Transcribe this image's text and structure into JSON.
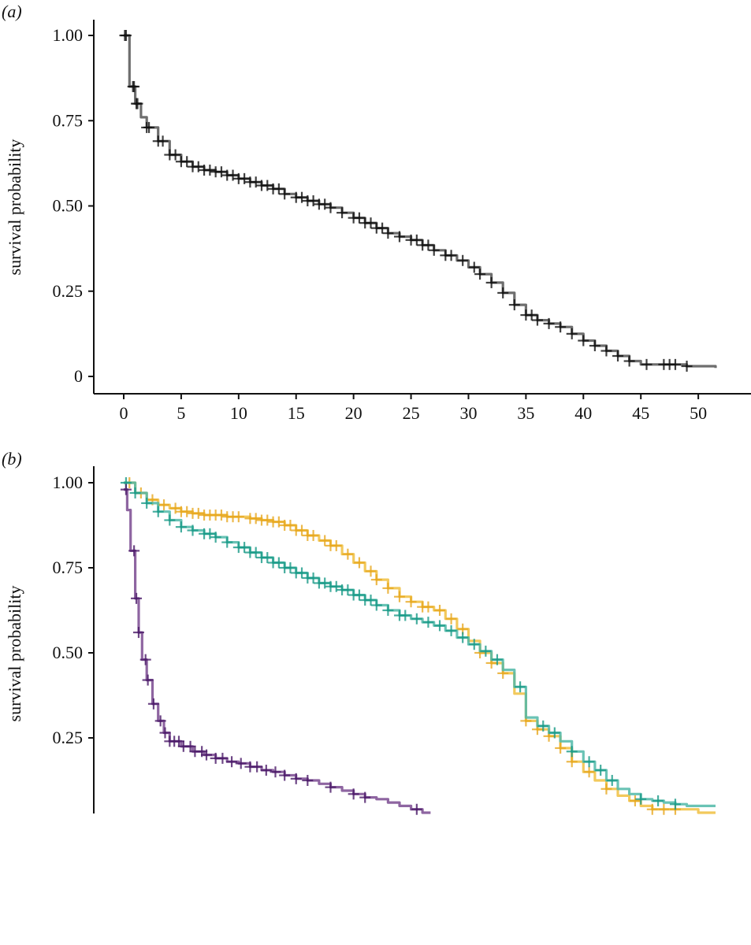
{
  "chart_data": [
    {
      "panel_label": "(a)",
      "type": "line",
      "step": true,
      "ylabel": "survival probability",
      "xlabel": "",
      "xlim": [
        0,
        51.5
      ],
      "ylim": [
        0,
        1.0
      ],
      "x_ticks": [
        0,
        5,
        10,
        15,
        20,
        25,
        30,
        35,
        40,
        45,
        50
      ],
      "x_tick_labels": [
        "0",
        "5",
        "10",
        "15",
        "20",
        "25",
        "30",
        "35",
        "40",
        "45",
        "50"
      ],
      "y_ticks": [
        0,
        0.25,
        0.5,
        0.75,
        1.0
      ],
      "y_tick_labels": [
        "0",
        "0.25",
        "0.50",
        "0.75",
        "1.00"
      ],
      "series": [
        {
          "color": "#555555",
          "censor_color": "#111111",
          "x": [
            0,
            0.5,
            1,
            1.5,
            2,
            3,
            4,
            5,
            6,
            7,
            8,
            9,
            10,
            11,
            12,
            13,
            14,
            15,
            16,
            17,
            18,
            19,
            20,
            21,
            22,
            23,
            24,
            25,
            26,
            27,
            28,
            29,
            30,
            31,
            32,
            33,
            34,
            35,
            36,
            37,
            38,
            39,
            40,
            41,
            42,
            43,
            44,
            45,
            46,
            47,
            48,
            49,
            50,
            51.5
          ],
          "y": [
            1.0,
            0.85,
            0.8,
            0.76,
            0.73,
            0.69,
            0.65,
            0.63,
            0.615,
            0.605,
            0.6,
            0.59,
            0.58,
            0.57,
            0.56,
            0.55,
            0.535,
            0.525,
            0.515,
            0.505,
            0.495,
            0.48,
            0.465,
            0.45,
            0.435,
            0.42,
            0.41,
            0.4,
            0.385,
            0.37,
            0.355,
            0.34,
            0.32,
            0.3,
            0.275,
            0.245,
            0.21,
            0.18,
            0.165,
            0.155,
            0.145,
            0.125,
            0.105,
            0.09,
            0.075,
            0.06,
            0.045,
            0.035,
            0.035,
            0.035,
            0.035,
            0.03,
            0.03,
            0.025
          ],
          "censored_x": [
            0.1,
            0.2,
            0.8,
            0.9,
            1.1,
            1.2,
            2.0,
            2.2,
            3.0,
            3.4,
            4.0,
            4.5,
            5.0,
            5.5,
            6.0,
            6.5,
            7.0,
            7.5,
            8.0,
            8.5,
            9.0,
            9.5,
            10.0,
            10.5,
            11.0,
            11.5,
            12.0,
            12.5,
            13.0,
            13.5,
            14.0,
            15.0,
            15.5,
            16.0,
            16.5,
            17.0,
            17.5,
            18.0,
            19.0,
            20.0,
            20.5,
            21.0,
            21.5,
            22.0,
            22.5,
            23.0,
            24.0,
            25.0,
            25.5,
            26.0,
            26.5,
            27.0,
            28.0,
            28.5,
            29.5,
            30.5,
            31.0,
            32.0,
            33.0,
            34.0,
            35.0,
            35.5,
            36.0,
            37.0,
            38.0,
            39.0,
            40.0,
            41.0,
            42.0,
            43.0,
            44.0,
            45.5,
            47.0,
            47.5,
            48.0,
            49.0
          ]
        }
      ]
    },
    {
      "panel_label": "(b)",
      "type": "line",
      "step": true,
      "ylabel": "survival probability",
      "xlabel": "",
      "xlim": [
        0,
        51.5
      ],
      "ylim": [
        0.02,
        1.0
      ],
      "y_ticks": [
        0.25,
        0.5,
        0.75,
        1.0
      ],
      "y_tick_labels": [
        "0.25",
        "0.50",
        "0.75",
        "1.00"
      ],
      "series": [
        {
          "color": "#f0c040",
          "censor_color": "#e8a820",
          "x": [
            0,
            1,
            2,
            3,
            4,
            5,
            6,
            7,
            8,
            9,
            10,
            11,
            12,
            13,
            14,
            15,
            16,
            17,
            18,
            19,
            20,
            21,
            22,
            23,
            24,
            25,
            26,
            27,
            28,
            29,
            30,
            31,
            32,
            33,
            34,
            35,
            36,
            37,
            38,
            39,
            40,
            41,
            42,
            43,
            44,
            45,
            46,
            47,
            48,
            49,
            50,
            51.5
          ],
          "y": [
            1.0,
            0.97,
            0.95,
            0.935,
            0.925,
            0.915,
            0.91,
            0.905,
            0.905,
            0.9,
            0.9,
            0.895,
            0.89,
            0.885,
            0.875,
            0.86,
            0.845,
            0.83,
            0.815,
            0.79,
            0.765,
            0.74,
            0.715,
            0.69,
            0.665,
            0.65,
            0.635,
            0.625,
            0.6,
            0.57,
            0.535,
            0.5,
            0.47,
            0.44,
            0.38,
            0.3,
            0.275,
            0.255,
            0.22,
            0.18,
            0.15,
            0.125,
            0.1,
            0.08,
            0.065,
            0.05,
            0.04,
            0.04,
            0.04,
            0.04,
            0.03,
            0.03
          ],
          "censored_x": [
            0.5,
            1.5,
            2.5,
            3.5,
            4.5,
            5.0,
            5.5,
            6.0,
            6.5,
            7.0,
            7.5,
            8.0,
            8.5,
            9.0,
            9.5,
            10.0,
            11.0,
            11.5,
            12.0,
            12.5,
            13.0,
            13.5,
            14.0,
            14.5,
            15.0,
            15.5,
            16.0,
            16.5,
            17.5,
            18.0,
            18.5,
            19.5,
            20.5,
            21.5,
            22.0,
            23.0,
            24.0,
            25.0,
            26.0,
            26.5,
            27.5,
            28.5,
            29.5,
            31.0,
            32.0,
            33.0,
            35.0,
            36.0,
            37.0,
            38.0,
            39.0,
            40.5,
            42.0,
            44.5,
            46.0,
            47.0,
            48.0
          ]
        },
        {
          "color": "#50b8a8",
          "censor_color": "#1a9a88",
          "x": [
            0,
            1,
            2,
            3,
            4,
            5,
            6,
            7,
            8,
            9,
            10,
            11,
            12,
            13,
            14,
            15,
            16,
            17,
            18,
            19,
            20,
            21,
            22,
            23,
            24,
            25,
            26,
            27,
            28,
            29,
            30,
            31,
            32,
            33,
            34,
            35,
            36,
            37,
            38,
            39,
            40,
            41,
            42,
            43,
            44,
            45,
            46,
            47,
            48,
            49,
            50,
            51.5
          ],
          "y": [
            1.0,
            0.97,
            0.94,
            0.915,
            0.89,
            0.87,
            0.86,
            0.85,
            0.84,
            0.825,
            0.81,
            0.795,
            0.78,
            0.765,
            0.75,
            0.735,
            0.72,
            0.705,
            0.695,
            0.685,
            0.67,
            0.655,
            0.64,
            0.625,
            0.61,
            0.6,
            0.59,
            0.58,
            0.565,
            0.545,
            0.525,
            0.505,
            0.48,
            0.45,
            0.4,
            0.31,
            0.285,
            0.265,
            0.24,
            0.21,
            0.18,
            0.155,
            0.125,
            0.1,
            0.085,
            0.07,
            0.065,
            0.06,
            0.055,
            0.05,
            0.05,
            0.05
          ],
          "censored_x": [
            0.2,
            1.0,
            2.0,
            3.0,
            4.0,
            5.0,
            6.0,
            7.0,
            7.5,
            8.0,
            9.0,
            10.0,
            10.5,
            11.0,
            11.5,
            12.0,
            12.5,
            13.0,
            13.5,
            14.0,
            14.5,
            15.0,
            15.5,
            16.0,
            16.5,
            17.0,
            17.5,
            18.0,
            18.5,
            19.0,
            19.5,
            20.0,
            20.5,
            21.0,
            21.5,
            22.0,
            23.0,
            24.0,
            24.5,
            25.5,
            26.5,
            27.5,
            28.5,
            29.5,
            30.5,
            31.5,
            32.5,
            34.5,
            36.5,
            37.5,
            39.0,
            40.5,
            41.5,
            42.5,
            45.0,
            46.5,
            48.0
          ]
        },
        {
          "color": "#7a4a90",
          "censor_color": "#4a1a68",
          "x": [
            0,
            0.3,
            0.6,
            1.0,
            1.3,
            1.6,
            2.0,
            2.5,
            3.0,
            3.5,
            4.0,
            5.0,
            6.0,
            7.0,
            8.0,
            9.0,
            10.0,
            11.0,
            12.0,
            13.0,
            14.0,
            15.0,
            16.0,
            17.0,
            18.0,
            19.0,
            20.0,
            21.0,
            22.0,
            23.0,
            24.0,
            25.0,
            26.0,
            26.7
          ],
          "y": [
            0.98,
            0.92,
            0.8,
            0.66,
            0.56,
            0.48,
            0.42,
            0.35,
            0.3,
            0.265,
            0.24,
            0.225,
            0.21,
            0.2,
            0.19,
            0.18,
            0.175,
            0.165,
            0.155,
            0.15,
            0.14,
            0.13,
            0.125,
            0.115,
            0.105,
            0.095,
            0.085,
            0.075,
            0.07,
            0.06,
            0.05,
            0.04,
            0.03,
            0.03
          ],
          "censored_x": [
            0.2,
            0.9,
            1.1,
            1.3,
            1.9,
            2.1,
            2.6,
            3.2,
            3.6,
            4.0,
            4.4,
            4.8,
            5.2,
            5.8,
            6.2,
            6.8,
            7.2,
            8.0,
            8.6,
            9.4,
            10.2,
            11.0,
            11.6,
            12.4,
            13.2,
            14.0,
            15.0,
            16.0,
            18.0,
            20.0,
            21.0,
            25.5
          ]
        }
      ]
    }
  ]
}
